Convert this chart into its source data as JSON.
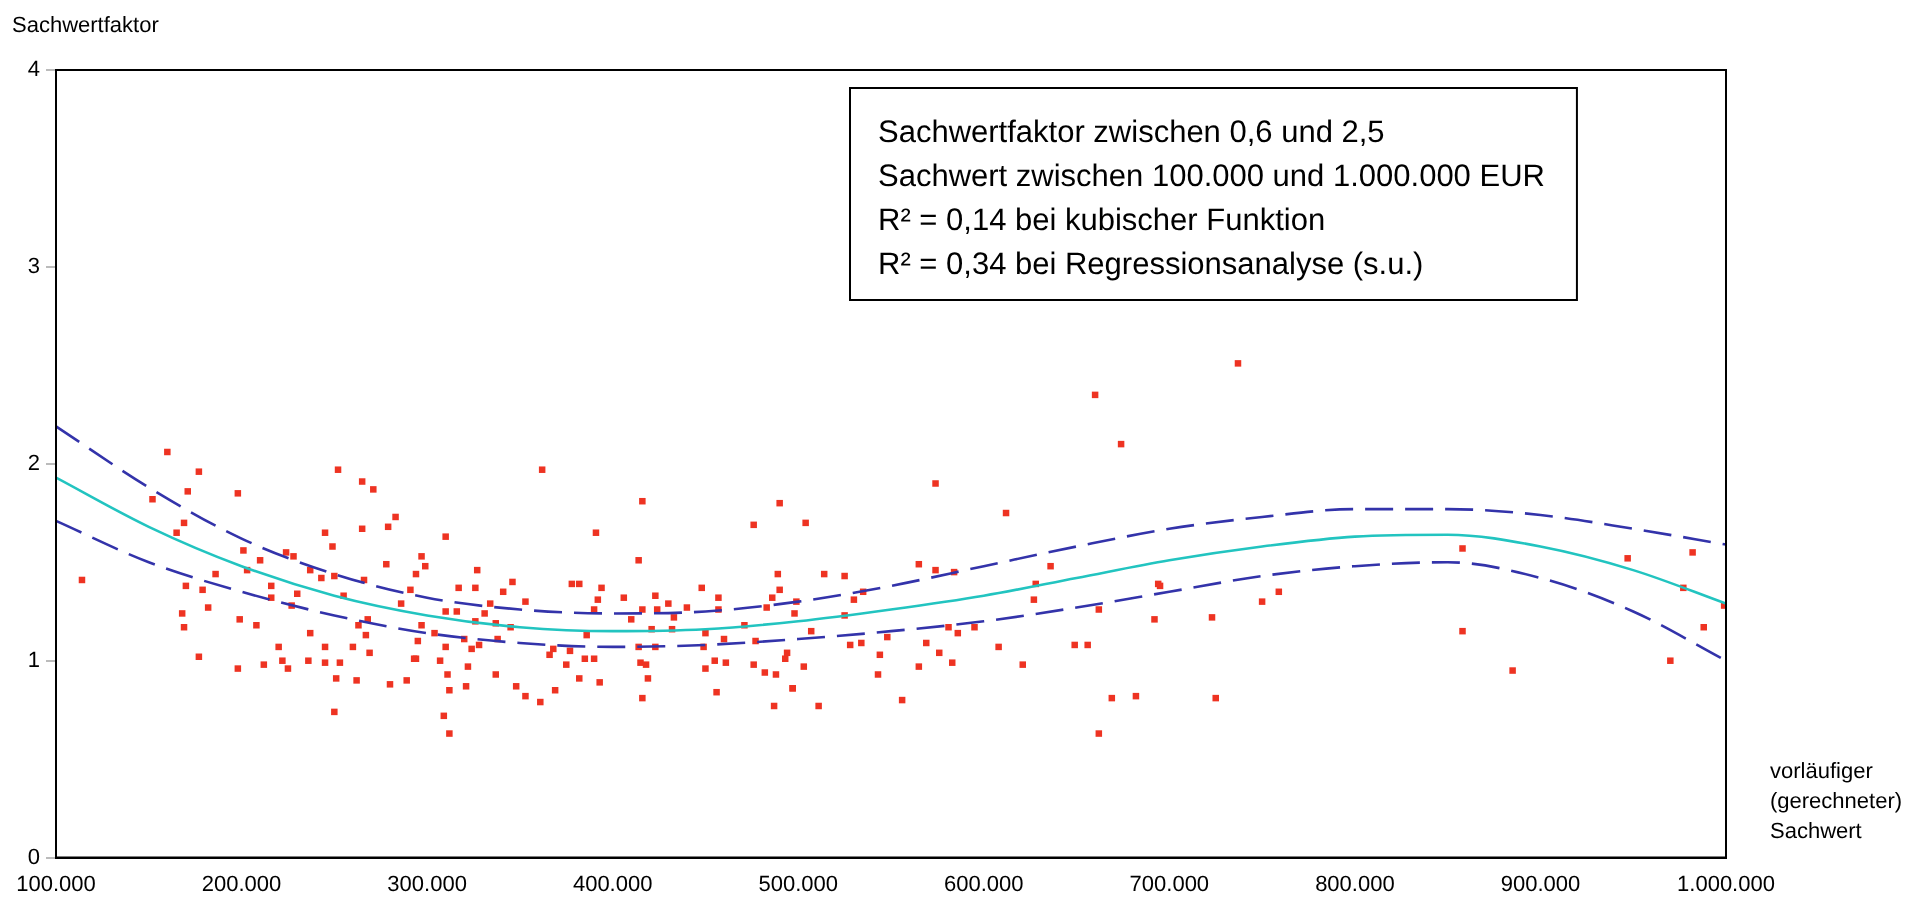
{
  "chart_data": {
    "type": "scatter",
    "ylabel": "Sachwertfaktor",
    "xlabel": "vorläufiger (gerechneter) Sachwert",
    "annotations": [
      "Sachwertfaktor zwischen 0,6 und 2,5",
      "Sachwert zwischen 100.000 und 1.000.000 EUR",
      "R² = 0,14 bei kubischer Funktion",
      "R² = 0,34 bei Regressionsanalyse (s.u.)"
    ],
    "xlim": [
      100000,
      1000000
    ],
    "xticks": [
      {
        "value": 100000,
        "label": "100.000"
      },
      {
        "value": 200000,
        "label": "200.000"
      },
      {
        "value": 300000,
        "label": "300.000"
      },
      {
        "value": 400000,
        "label": "400.000"
      },
      {
        "value": 500000,
        "label": "500.000"
      },
      {
        "value": 600000,
        "label": "600.000"
      },
      {
        "value": 700000,
        "label": "700.000"
      },
      {
        "value": 800000,
        "label": "800.000"
      },
      {
        "value": 900000,
        "label": "900.000"
      },
      {
        "value": 1000000,
        "label": "1.000.000"
      }
    ],
    "ylim": [
      0,
      4
    ],
    "yticks": [
      0,
      1,
      2,
      3,
      4
    ],
    "grid": false,
    "legend": false,
    "marker": "square",
    "series": [
      {
        "color": "#ee3322",
        "x": [
          114000,
          152000,
          160000,
          177000,
          171000,
          198000,
          169000,
          165000,
          170000,
          168000,
          169000,
          177000,
          182000,
          179000,
          186000,
          199000,
          198000,
          201000,
          208000,
          210000,
          203000,
          216000,
          224000,
          228000,
          237000,
          230000,
          227000,
          216000,
          212000,
          220000,
          225000,
          222000,
          236000,
          237000,
          243000,
          245000,
          249000,
          252000,
          250000,
          255000,
          265000,
          271000,
          265000,
          279000,
          283000,
          266000,
          278000,
          297000,
          299000,
          291000,
          286000,
          245000,
          245000,
          253000,
          251000,
          250000,
          262000,
          269000,
          267000,
          280000,
          289000,
          293000,
          295000,
          297000,
          304000,
          263000,
          268000,
          260000,
          362000,
          310000,
          391000,
          416000,
          414000,
          476000,
          490000,
          294000,
          327000,
          317000,
          326000,
          346000,
          341000,
          353000,
          334000,
          331000,
          310000,
          316000,
          326000,
          337000,
          345000,
          338000,
          320000,
          310000,
          324000,
          328000,
          322000,
          307000,
          294000,
          311000,
          321000,
          337000,
          348000,
          353000,
          361000,
          369000,
          312000,
          309000,
          312000,
          382000,
          393000,
          375000,
          366000,
          368000,
          377000,
          386000,
          385000,
          390000,
          378000,
          382000,
          394000,
          390000,
          392000,
          406000,
          410000,
          416000,
          421000,
          423000,
          424000,
          430000,
          433000,
          440000,
          432000,
          423000,
          414000,
          415000,
          418000,
          419000,
          416000,
          448000,
          457000,
          457000,
          450000,
          460000,
          449000,
          455000,
          461000,
          450000,
          456000,
          471000,
          477000,
          483000,
          489000,
          490000,
          486000,
          499000,
          476000,
          482000,
          488000,
          493000,
          487000,
          497000,
          660000,
          674000,
          574000,
          612000,
          504000,
          565000,
          574000,
          584000,
          514000,
          525000,
          535000,
          530000,
          498000,
          525000,
          507000,
          636000,
          628000,
          627000,
          581000,
          586000,
          595000,
          569000,
          548000,
          534000,
          528000,
          544000,
          576000,
          583000,
          565000,
          543000,
          608000,
          621000,
          503000,
          494000,
          497000,
          511000,
          556000,
          649000,
          656000,
          662000,
          694000,
          692000,
          669000,
          682000,
          662000,
          737000,
          695000,
          725000,
          723000,
          750000,
          759000,
          858000,
          858000,
          885000,
          947000,
          982000,
          977000,
          999000,
          988000,
          970000
        ],
        "values": [
          1.41,
          1.82,
          2.06,
          1.96,
          1.86,
          1.85,
          1.7,
          1.65,
          1.38,
          1.24,
          1.17,
          1.02,
          1.27,
          1.36,
          1.44,
          1.21,
          0.96,
          1.56,
          1.18,
          1.51,
          1.46,
          1.38,
          1.55,
          1.53,
          1.46,
          1.34,
          1.28,
          1.32,
          0.98,
          1.07,
          0.96,
          1.0,
          1.0,
          1.14,
          1.42,
          1.65,
          1.58,
          1.97,
          1.43,
          1.33,
          1.91,
          1.87,
          1.67,
          1.68,
          1.73,
          1.41,
          1.49,
          1.53,
          1.48,
          1.36,
          1.29,
          1.07,
          0.99,
          0.99,
          0.91,
          0.74,
          0.9,
          1.04,
          1.13,
          0.88,
          0.9,
          1.01,
          1.1,
          1.18,
          1.14,
          1.18,
          1.21,
          1.07,
          1.97,
          1.63,
          1.65,
          1.81,
          1.51,
          1.69,
          1.8,
          1.44,
          1.46,
          1.37,
          1.37,
          1.4,
          1.35,
          1.3,
          1.29,
          1.24,
          1.25,
          1.25,
          1.2,
          1.19,
          1.17,
          1.11,
          1.11,
          1.07,
          1.06,
          1.08,
          0.97,
          1.0,
          1.01,
          0.93,
          0.87,
          0.93,
          0.87,
          0.82,
          0.79,
          0.85,
          0.85,
          0.72,
          0.63,
          0.91,
          0.89,
          0.98,
          1.03,
          1.06,
          1.05,
          1.13,
          1.01,
          1.01,
          1.39,
          1.39,
          1.37,
          1.26,
          1.31,
          1.32,
          1.21,
          1.26,
          1.16,
          1.33,
          1.26,
          1.29,
          1.22,
          1.27,
          1.16,
          1.07,
          1.07,
          0.99,
          0.98,
          0.91,
          0.81,
          1.37,
          1.32,
          1.26,
          1.14,
          1.11,
          1.07,
          1.0,
          0.99,
          0.96,
          0.84,
          1.18,
          1.1,
          1.27,
          1.44,
          1.36,
          1.32,
          1.3,
          0.98,
          0.94,
          0.93,
          1.01,
          0.77,
          0.86,
          2.35,
          2.1,
          1.9,
          1.75,
          1.7,
          1.49,
          1.46,
          1.45,
          1.44,
          1.43,
          1.35,
          1.31,
          1.24,
          1.23,
          1.15,
          1.48,
          1.39,
          1.31,
          1.17,
          1.14,
          1.17,
          1.09,
          1.12,
          1.09,
          1.08,
          1.03,
          1.04,
          0.99,
          0.97,
          0.93,
          1.07,
          0.98,
          0.97,
          1.04,
          0.86,
          0.77,
          0.8,
          1.08,
          1.08,
          1.26,
          1.39,
          1.21,
          0.81,
          0.82,
          0.63,
          2.51,
          1.38,
          0.81,
          1.22,
          1.3,
          1.35,
          1.57,
          1.15,
          0.95,
          1.52,
          1.55,
          1.37,
          1.28,
          1.17,
          1.0
        ]
      },
      {
        "type": "line",
        "color": "#22c4c0",
        "marker": "none",
        "line_style": "solid",
        "x": [
          100000,
          150000,
          200000,
          250000,
          300000,
          350000,
          400000,
          450000,
          500000,
          550000,
          600000,
          650000,
          700000,
          750000,
          800000,
          850000,
          900000,
          950000,
          1000000
        ],
        "values": [
          1.93,
          1.68,
          1.48,
          1.33,
          1.23,
          1.17,
          1.15,
          1.16,
          1.2,
          1.26,
          1.33,
          1.42,
          1.51,
          1.58,
          1.63,
          1.64,
          1.58,
          1.46,
          1.29
        ]
      },
      {
        "type": "line",
        "color": "#3333aa",
        "marker": "none",
        "line_style": "dashed",
        "x": [
          100000,
          150000,
          200000,
          250000,
          300000,
          350000,
          400000,
          450000,
          500000,
          550000,
          600000,
          650000,
          700000,
          750000,
          800000,
          850000,
          900000,
          950000,
          1000000
        ],
        "values": [
          2.19,
          1.88,
          1.62,
          1.44,
          1.32,
          1.26,
          1.24,
          1.25,
          1.3,
          1.38,
          1.48,
          1.58,
          1.67,
          1.73,
          1.77,
          1.77,
          1.74,
          1.67,
          1.59
        ]
      },
      {
        "type": "line",
        "color": "#3333aa",
        "marker": "none",
        "line_style": "dashed",
        "x": [
          100000,
          150000,
          200000,
          250000,
          300000,
          350000,
          400000,
          450000,
          500000,
          550000,
          600000,
          650000,
          700000,
          750000,
          800000,
          850000,
          900000,
          950000,
          1000000
        ],
        "values": [
          1.71,
          1.5,
          1.35,
          1.23,
          1.14,
          1.09,
          1.07,
          1.08,
          1.11,
          1.15,
          1.2,
          1.27,
          1.35,
          1.43,
          1.48,
          1.5,
          1.42,
          1.25,
          1.0
        ]
      }
    ]
  }
}
